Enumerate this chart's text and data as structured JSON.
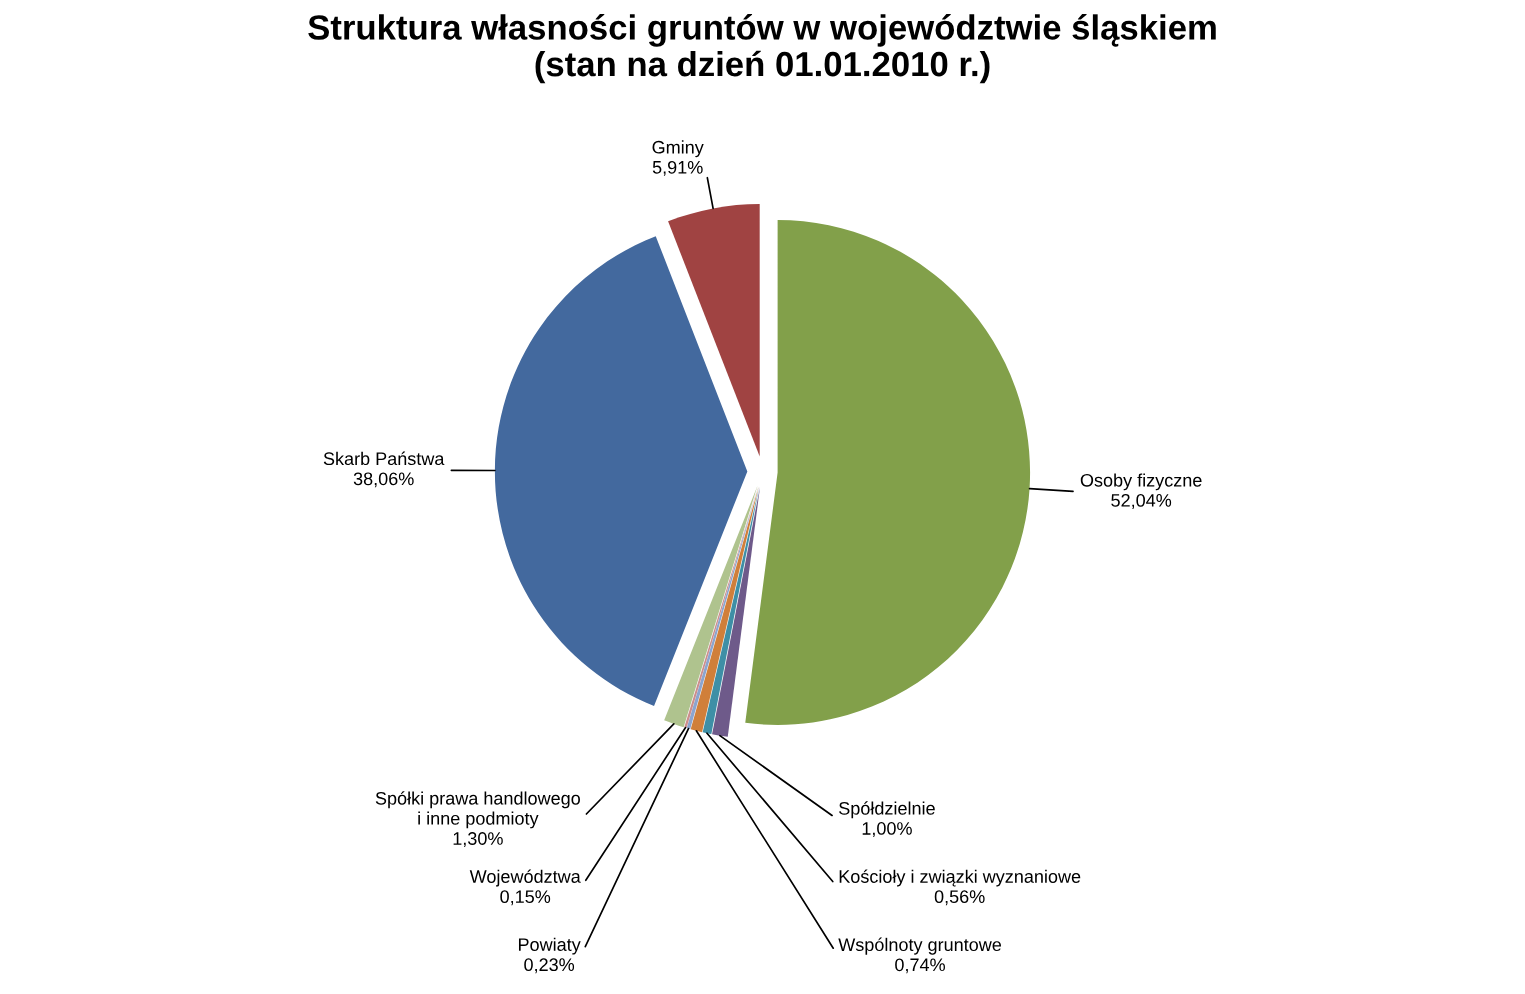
{
  "chart_data": {
    "type": "pie",
    "title": "Struktura własności gruntów w województwie śląskiem\n(stan na dzień 01.01.2010 r.)",
    "categories": [
      "Osoby fizyczne",
      "Spółdzielnie",
      "Kościoły i związki wyznaniowe",
      "Wspólnoty gruntowe",
      "Powiaty",
      "Województwa",
      "Spółki prawa handlowego\ni inne podmioty",
      "Skarb Państwa",
      "Gminy"
    ],
    "values": [
      52.04,
      1.0,
      0.56,
      0.74,
      0.23,
      0.15,
      1.3,
      38.06,
      5.91
    ],
    "value_labels": [
      "52,04%",
      "1,00%",
      "0,56%",
      "0,74%",
      "0,23%",
      "0,15%",
      "1,30%",
      "38,06%",
      "5,91%"
    ],
    "colors": [
      "#82a04a",
      "#6e5a8a",
      "#3e8fa6",
      "#d07f3a",
      "#8ca5cf",
      "#cc8e8c",
      "#afc38e",
      "#43699e",
      "#a04342"
    ]
  }
}
